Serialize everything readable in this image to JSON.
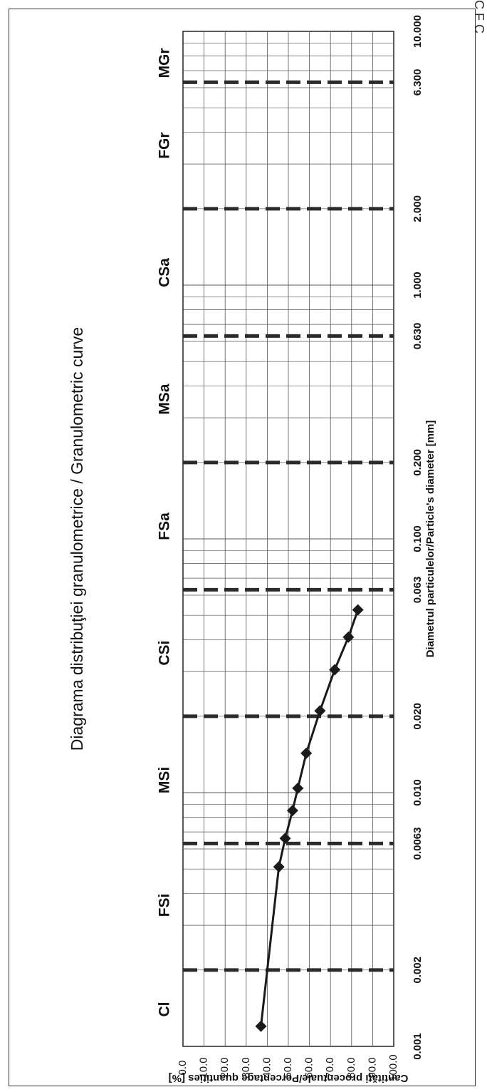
{
  "corner_text": "C F C",
  "chart_data": {
    "type": "line",
    "title": "Diagrama distribuţiei granulometrice / Granulometric curve",
    "xlabel": "Diametrul particulelor/Particle's diameter [mm]",
    "ylabel": "Cantităţi procentuale/Percentage quantities [%]",
    "xscale": "log",
    "xlim": [
      0.001,
      10
    ],
    "ylim": [
      0,
      100
    ],
    "orientation": "rotated 90° counter-clockwise",
    "x_tick_labels": [
      "0.001",
      "0.002",
      "0.0063",
      "0.010",
      "0.020",
      "0.063",
      "0.100",
      "0.200",
      "0.630",
      "1.000",
      "2.000",
      "6.300",
      "10.000"
    ],
    "x_ticks": [
      0.001,
      0.002,
      0.0063,
      0.01,
      0.02,
      0.063,
      0.1,
      0.2,
      0.63,
      1,
      2,
      6.3,
      10
    ],
    "y_tick_labels": [
      "0.0",
      "10.0",
      "20.0",
      "30.0",
      "40.0",
      "50.0",
      "60.0",
      "70.0",
      "80.0",
      "90.0",
      "100.0"
    ],
    "y_ticks": [
      0,
      10,
      20,
      30,
      40,
      50,
      60,
      70,
      80,
      90,
      100
    ],
    "zone_boundaries": [
      0.002,
      0.0063,
      0.02,
      0.063,
      0.2,
      0.63,
      2,
      6.3
    ],
    "zones": [
      {
        "label": "Cl",
        "x": 0.0014
      },
      {
        "label": "FSi",
        "x": 0.0036
      },
      {
        "label": "MSi",
        "x": 0.0112
      },
      {
        "label": "CSi",
        "x": 0.0355
      },
      {
        "label": "FSa",
        "x": 0.112
      },
      {
        "label": "MSa",
        "x": 0.355
      },
      {
        "label": "CSa",
        "x": 1.12
      },
      {
        "label": "FGr",
        "x": 3.55
      },
      {
        "label": "MGr",
        "x": 7.5
      }
    ],
    "grid": true,
    "series": [
      {
        "color": "#1a1a1a",
        "x": [
          0.0012,
          0.0051,
          0.0066,
          0.0085,
          0.0104,
          0.0143,
          0.021,
          0.0305,
          0.041,
          0.0525
        ],
        "y": [
          37.0,
          45.5,
          48.5,
          52.0,
          54.5,
          58.5,
          65.0,
          72.0,
          78.5,
          83.0
        ]
      }
    ]
  }
}
